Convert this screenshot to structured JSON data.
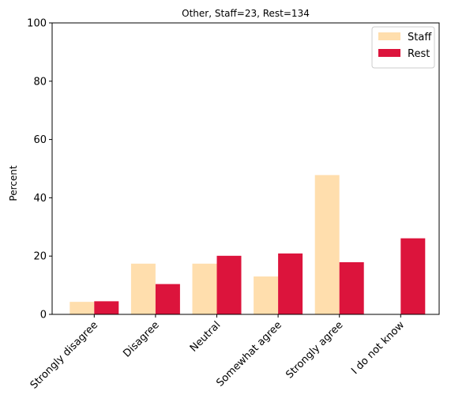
{
  "chart_data": {
    "type": "bar",
    "title": "Other, Staff=23, Rest=134",
    "xlabel": "",
    "ylabel": "Percent",
    "ylim": [
      0,
      100
    ],
    "yticks": [
      0,
      20,
      40,
      60,
      80,
      100
    ],
    "categories": [
      "Strongly disagree",
      "Disagree",
      "Neutral",
      "Somewhat agree",
      "Strongly agree",
      "I do not know"
    ],
    "series": [
      {
        "name": "Staff",
        "color": "#ffdead",
        "values": [
          4.3,
          17.4,
          17.4,
          13.0,
          47.8,
          0.0
        ]
      },
      {
        "name": "Rest",
        "color": "#dc143c",
        "values": [
          4.5,
          10.4,
          20.1,
          20.9,
          17.9,
          26.1
        ]
      }
    ],
    "legend": "top-right",
    "grid": false
  }
}
